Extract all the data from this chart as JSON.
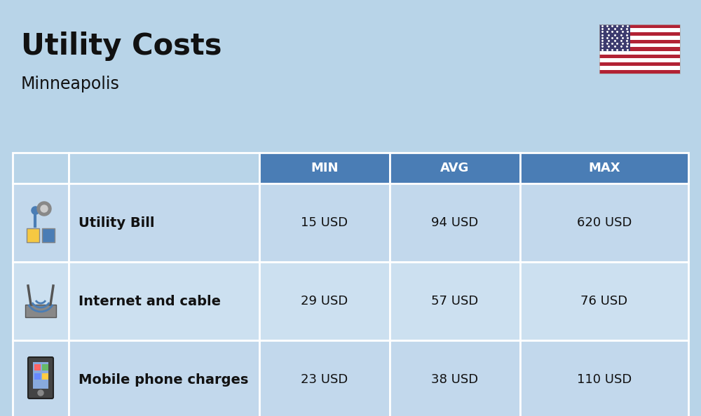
{
  "title": "Utility Costs",
  "subtitle": "Minneapolis",
  "background_color": "#b8d4e8",
  "header_color": "#4a7db5",
  "header_text_color": "#ffffff",
  "row_color_odd": "#c2d8ec",
  "row_color_even": "#cce0f0",
  "border_color": "#ffffff",
  "text_color": "#111111",
  "col_headers": [
    "",
    "",
    "MIN",
    "AVG",
    "MAX"
  ],
  "rows": [
    {
      "label": "Utility Bill",
      "min": "15 USD",
      "avg": "94 USD",
      "max": "620 USD"
    },
    {
      "label": "Internet and cable",
      "min": "29 USD",
      "avg": "57 USD",
      "max": "76 USD"
    },
    {
      "label": "Mobile phone charges",
      "min": "23 USD",
      "avg": "38 USD",
      "max": "110 USD"
    }
  ],
  "title_fontsize": 30,
  "subtitle_fontsize": 17,
  "header_fontsize": 13,
  "cell_fontsize": 13,
  "label_fontsize": 14,
  "flag_stripes": [
    "#B22234",
    "#FFFFFF",
    "#B22234",
    "#FFFFFF",
    "#B22234",
    "#FFFFFF",
    "#B22234",
    "#FFFFFF",
    "#B22234",
    "#FFFFFF",
    "#B22234",
    "#FFFFFF",
    "#B22234"
  ],
  "flag_canton_color": "#3C3B6E"
}
